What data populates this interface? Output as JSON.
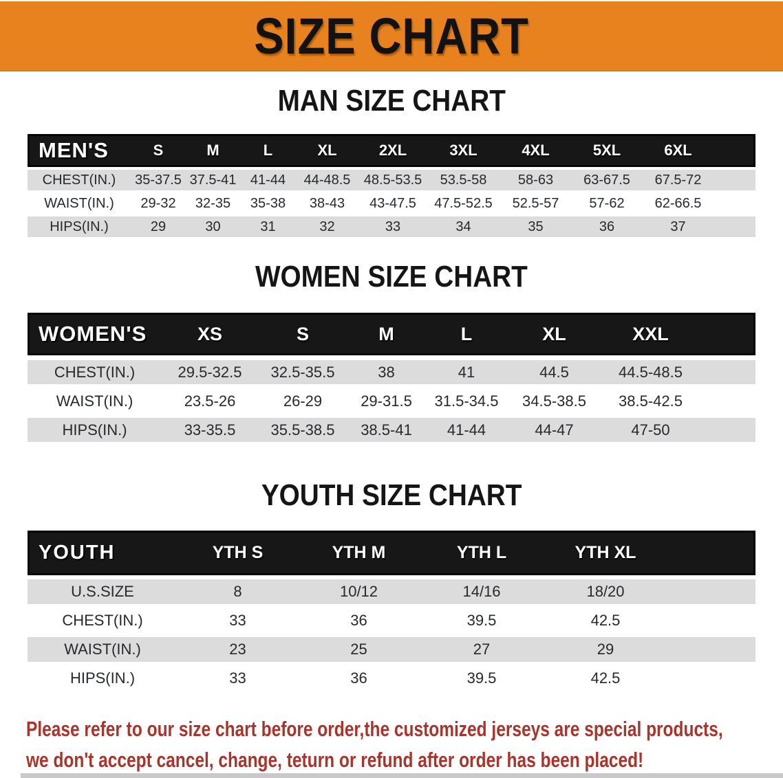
{
  "banner": {
    "title": "SIZE CHART"
  },
  "colors": {
    "banner_bg": "#E8821E",
    "table_header_bg": "#171717",
    "row_gray": "#DCDCDC",
    "row_white": "#FFFFFF",
    "disclaimer_red": "#A8342C"
  },
  "sections": [
    {
      "title": "MAN SIZE CHART",
      "table": {
        "header_label": "MEN'S",
        "columns": [
          "S",
          "M",
          "L",
          "XL",
          "2XL",
          "3XL",
          "4XL",
          "5XL",
          "6XL"
        ],
        "rows": [
          {
            "label": "CHEST(IN.)",
            "values": [
              "35-37.5",
              "37.5-41",
              "41-44",
              "44-48.5",
              "48.5-53.5",
              "53.5-58",
              "58-63",
              "63-67.5",
              "67.5-72"
            ]
          },
          {
            "label": "WAIST(IN.)",
            "values": [
              "29-32",
              "32-35",
              "35-38",
              "38-43",
              "43-47.5",
              "47.5-52.5",
              "52.5-57",
              "57-62",
              "62-66.5"
            ]
          },
          {
            "label": "HIPS(IN.)",
            "values": [
              "29",
              "30",
              "31",
              "32",
              "33",
              "34",
              "35",
              "36",
              "37"
            ]
          }
        ]
      }
    },
    {
      "title": "WOMEN SIZE CHART",
      "table": {
        "header_label": "WOMEN'S",
        "columns": [
          "XS",
          "S",
          "M",
          "L",
          "XL",
          "XXL"
        ],
        "rows": [
          {
            "label": "CHEST(IN.)",
            "values": [
              "29.5-32.5",
              "32.5-35.5",
              "38",
              "41",
              "44.5",
              "44.5-48.5"
            ]
          },
          {
            "label": "WAIST(IN.)",
            "values": [
              "23.5-26",
              "26-29",
              "29-31.5",
              "31.5-34.5",
              "34.5-38.5",
              "38.5-42.5"
            ]
          },
          {
            "label": "HIPS(IN.)",
            "values": [
              "33-35.5",
              "35.5-38.5",
              "38.5-41",
              "41-44",
              "44-47",
              "47-50"
            ]
          }
        ]
      }
    },
    {
      "title": "YOUTH SIZE CHART",
      "table": {
        "header_label": "YOUTH",
        "columns": [
          "YTH S",
          "YTH M",
          "YTH L",
          "YTH XL"
        ],
        "rows": [
          {
            "label": "U.S.SIZE",
            "values": [
              "8",
              "10/12",
              "14/16",
              "18/20"
            ]
          },
          {
            "label": "CHEST(IN.)",
            "values": [
              "33",
              "36",
              "39.5",
              "42.5"
            ]
          },
          {
            "label": "WAIST(IN.)",
            "values": [
              "23",
              "25",
              "27",
              "29"
            ]
          },
          {
            "label": "HIPS(IN.)",
            "values": [
              "33",
              "36",
              "39.5",
              "42.5"
            ]
          }
        ]
      }
    }
  ],
  "disclaimer": {
    "line1": "Please refer to our size chart before order,the customized jerseys are special products,",
    "line2": "we don't accept cancel, change, teturn or refund after order has been placed!"
  }
}
